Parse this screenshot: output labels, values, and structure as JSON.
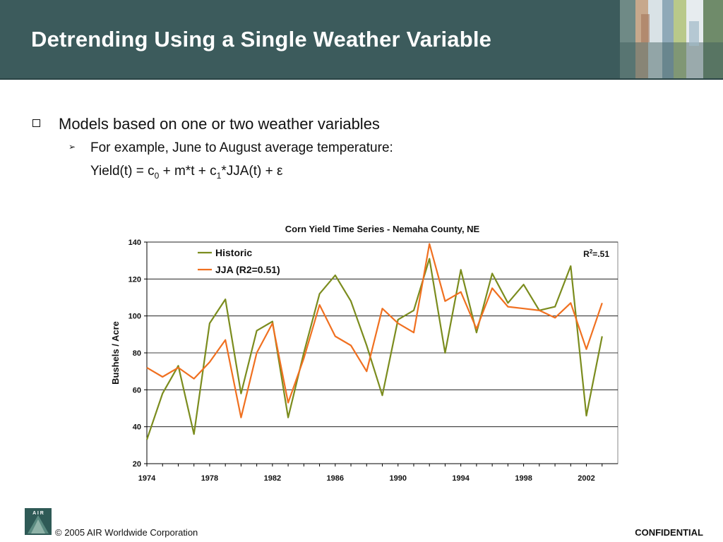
{
  "slide": {
    "title": "Detrending Using a Single Weather Variable",
    "bullet_1": "Models based on one or two weather variables",
    "bullet_2": "For example, June to August average temperature:",
    "formula": {
      "p1": "Yield(t) = c",
      "s1": "0",
      "p2": " + m*t + c",
      "s2": "1",
      "p3": "*JJA(t) + ε"
    }
  },
  "footer": {
    "logo_text": "A I R",
    "copyright": "© 2005 AIR Worldwide Corporation",
    "confidential": "CONFIDENTIAL"
  },
  "colors": {
    "header_bg": "#3c5b5c",
    "historic": "#7b8c1e",
    "jja": "#f07020"
  },
  "chart_data": {
    "type": "line",
    "title": "Corn Yield Time Series - Nemaha County, NE",
    "xlabel": "",
    "ylabel": "Bushels / Acre",
    "ylim": [
      20,
      140
    ],
    "yticks": [
      20,
      40,
      60,
      80,
      100,
      120,
      140
    ],
    "xlim": [
      1974,
      2004
    ],
    "xticks": [
      1974,
      1978,
      1982,
      1986,
      1990,
      1994,
      1998,
      2002
    ],
    "grid": true,
    "legend": "top-left",
    "annotation": {
      "base": "R",
      "sup": "2",
      "rest": "=.51"
    },
    "x": [
      1974,
      1975,
      1976,
      1977,
      1978,
      1979,
      1980,
      1981,
      1982,
      1983,
      1984,
      1985,
      1986,
      1987,
      1988,
      1989,
      1990,
      1991,
      1992,
      1993,
      1994,
      1995,
      1996,
      1997,
      1998,
      1999,
      2000,
      2001,
      2002,
      2003
    ],
    "series": [
      {
        "name": "Historic",
        "values": [
          33,
          58,
          73,
          36,
          96,
          109,
          58,
          92,
          97,
          45,
          80,
          112,
          122,
          108,
          84,
          57,
          98,
          103,
          131,
          80,
          125,
          91,
          123,
          107,
          117,
          103,
          105,
          127,
          46,
          89
        ]
      },
      {
        "name": "JJA  (R2=0.51)",
        "values": [
          72,
          67,
          72,
          66,
          75,
          87,
          45,
          80,
          96,
          53,
          77,
          106,
          89,
          84,
          70,
          104,
          96,
          91,
          139,
          108,
          113,
          93,
          115,
          105,
          104,
          103,
          99,
          107,
          82,
          107
        ]
      }
    ]
  }
}
